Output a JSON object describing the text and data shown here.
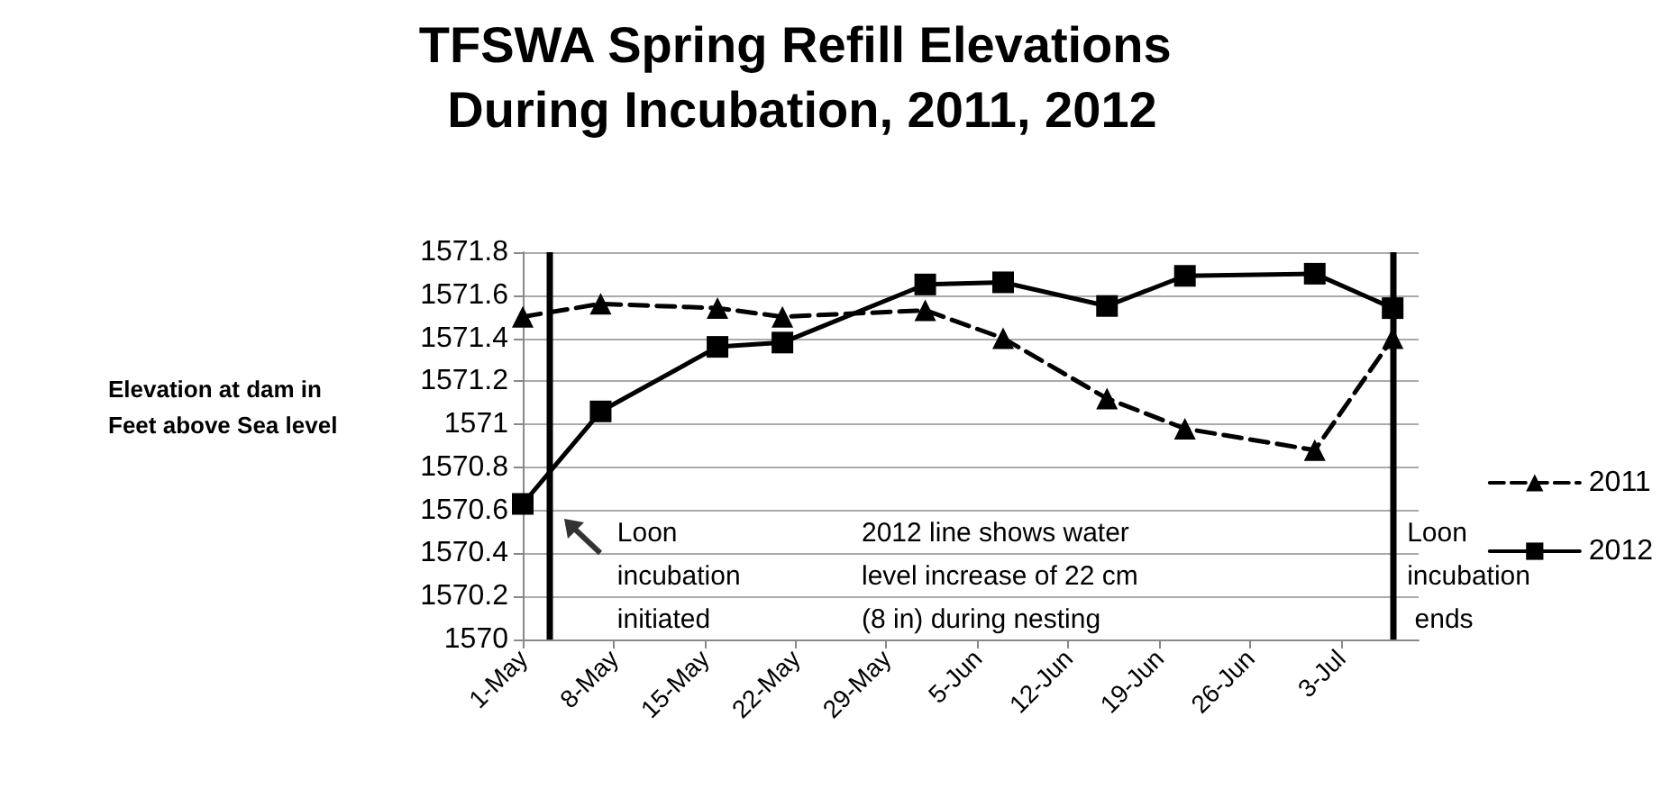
{
  "chart_data": {
    "type": "line",
    "title": "TFSWA Spring Refill Elevations During Incubation, 2011, 2012",
    "ylabel": "Elevation at dam in Feet above Sea level",
    "x": [
      "--05-01",
      "--05-07",
      "--05-16",
      "--05-21",
      "--06-01",
      "--06-07",
      "--06-15",
      "--06-21",
      "--07-01",
      "--07-07"
    ],
    "series": [
      {
        "name": "2011",
        "color": "#000000",
        "marker": "triangle",
        "line_style": "dashed",
        "values": [
          1571.5,
          1571.56,
          1571.54,
          1571.5,
          1571.53,
          1571.4,
          1571.12,
          1570.98,
          1570.88,
          1571.4
        ]
      },
      {
        "name": "2012",
        "color": "#000000",
        "marker": "square",
        "line_style": "solid",
        "values": [
          1570.63,
          1571.06,
          1571.36,
          1571.38,
          1571.65,
          1571.66,
          1571.55,
          1571.69,
          1571.7,
          1571.54
        ]
      }
    ],
    "xlim": [
      "--05-01",
      "--07-09"
    ],
    "xticks": [
      {
        "value": "--05-01",
        "label": "1-May"
      },
      {
        "value": "--05-08",
        "label": "8-May"
      },
      {
        "value": "--05-15",
        "label": "15-May"
      },
      {
        "value": "--05-22",
        "label": "22-May"
      },
      {
        "value": "--05-29",
        "label": "29-May"
      },
      {
        "value": "--06-05",
        "label": "5-Jun"
      },
      {
        "value": "--06-12",
        "label": "12-Jun"
      },
      {
        "value": "--06-19",
        "label": "19-Jun"
      },
      {
        "value": "--06-26",
        "label": "26-Jun"
      },
      {
        "value": "--07-03",
        "label": "3-Jul"
      }
    ],
    "ylim": [
      1570,
      1571.8
    ],
    "yticks": [
      1570,
      1570.2,
      1570.4,
      1570.6,
      1570.8,
      1571,
      1571.2,
      1571.4,
      1571.6,
      1571.8
    ],
    "grid": "y",
    "legend": "right",
    "ref_lines": [
      {
        "axis": "x",
        "value": "--05-03",
        "label": "Loon incubation initiated",
        "color": "#000000"
      },
      {
        "axis": "x",
        "value": "--07-07",
        "label": "Loon incubation ends",
        "color": "#000000"
      }
    ],
    "annotations": [
      "2012 line shows water level increase of 22 cm (8 in) during nesting"
    ]
  }
}
